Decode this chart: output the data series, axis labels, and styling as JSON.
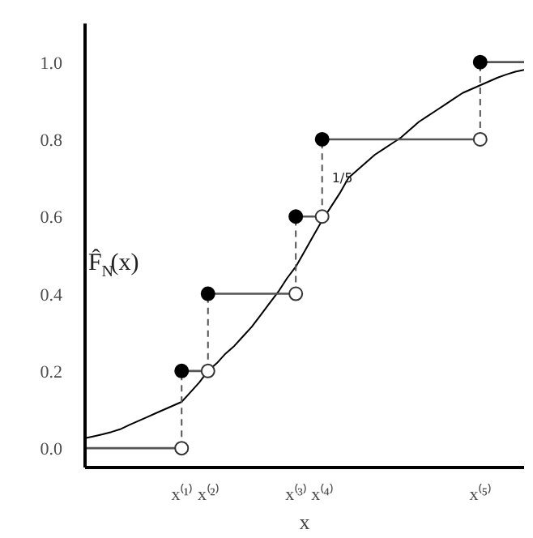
{
  "chart_data": {
    "type": "line",
    "xlabel": "x",
    "ylabel": "F̂$_{N}$(x)",
    "ylim": [
      -0.05,
      1.1
    ],
    "categories": [
      null,
      null,
      null,
      null,
      null,
      null,
      null,
      null,
      null,
      null,
      null,
      "x⁽¹⁾",
      null,
      null,
      "x⁽²⁾",
      null,
      null,
      null,
      null,
      null,
      null,
      null,
      null,
      null,
      "x⁽³⁾",
      null,
      null,
      "x⁽⁴⁾",
      null,
      null,
      null,
      null,
      null,
      null,
      null,
      null,
      null,
      null,
      null,
      null,
      null,
      null,
      null,
      null,
      null,
      "x⁽⁵⁾",
      null,
      null,
      null,
      null,
      null
    ],
    "yticks": [
      {
        "value": 0,
        "label": "0.0"
      },
      0.2,
      0.4,
      0.6,
      0.8,
      {
        "value": 1,
        "label": "1.0"
      }
    ],
    "series": [
      {
        "color": "#000000",
        "values": [
          0.026,
          0.031,
          0.036,
          0.042,
          0.049,
          0.06,
          0.07,
          0.08,
          0.09,
          0.1,
          0.11,
          0.12,
          0.145,
          0.17,
          0.2,
          0.22,
          0.245,
          0.265,
          0.29,
          0.315,
          0.345,
          0.375,
          0.405,
          0.44,
          0.47,
          0.51,
          0.55,
          0.59,
          0.625,
          0.66,
          0.7,
          0.72,
          0.74,
          0.76,
          0.775,
          0.79,
          0.805,
          0.825,
          0.845,
          0.86,
          0.875,
          0.89,
          0.905,
          0.92,
          0.93,
          0.94,
          0.95,
          0.96,
          0.968,
          0.975,
          0.98
        ]
      },
      {
        "type": "step",
        "color": "#555555",
        "line_style": "dashed",
        "values": [
          0,
          0,
          0,
          0,
          0,
          0,
          0,
          0,
          0,
          0,
          0,
          0.2,
          0.2,
          0.2,
          0.4,
          0.4,
          0.4,
          0.4,
          0.4,
          0.4,
          0.4,
          0.4,
          0.4,
          0.4,
          0.6,
          0.6,
          0.6,
          0.8,
          0.8,
          0.8,
          0.8,
          0.8,
          0.8,
          0.8,
          0.8,
          0.8,
          0.8,
          0.8,
          0.8,
          0.8,
          0.8,
          0.8,
          0.8,
          0.8,
          0.8,
          1.0,
          1.0,
          1.0,
          1.0,
          1.0,
          1.0
        ]
      },
      {
        "type": "scatter",
        "marker": "circle",
        "color": "#ffffff",
        "values": [
          null,
          null,
          null,
          null,
          null,
          null,
          null,
          null,
          null,
          null,
          null,
          0,
          null,
          null,
          0.2,
          null,
          null,
          null,
          null,
          null,
          null,
          null,
          null,
          null,
          0.4,
          null,
          null,
          0.6,
          null,
          null,
          null,
          null,
          null,
          null,
          null,
          null,
          null,
          null,
          null,
          null,
          null,
          null,
          null,
          null,
          null,
          0.8,
          null,
          null,
          null,
          null,
          null
        ]
      },
      {
        "type": "scatter",
        "marker": "circle",
        "color": "#000000",
        "values": [
          null,
          null,
          null,
          null,
          null,
          null,
          null,
          null,
          null,
          null,
          null,
          0.2,
          null,
          null,
          0.4,
          null,
          null,
          null,
          null,
          null,
          null,
          null,
          null,
          null,
          0.6,
          null,
          null,
          0.8,
          null,
          null,
          null,
          null,
          null,
          null,
          null,
          null,
          null,
          null,
          null,
          null,
          null,
          null,
          null,
          null,
          null,
          1.0,
          null,
          null,
          null,
          null,
          null
        ]
      }
    ],
    "annotations": [
      {
        "text": "1/5",
        "x": "x⁽⁴⁾",
        "y": 0.7
      }
    ]
  }
}
